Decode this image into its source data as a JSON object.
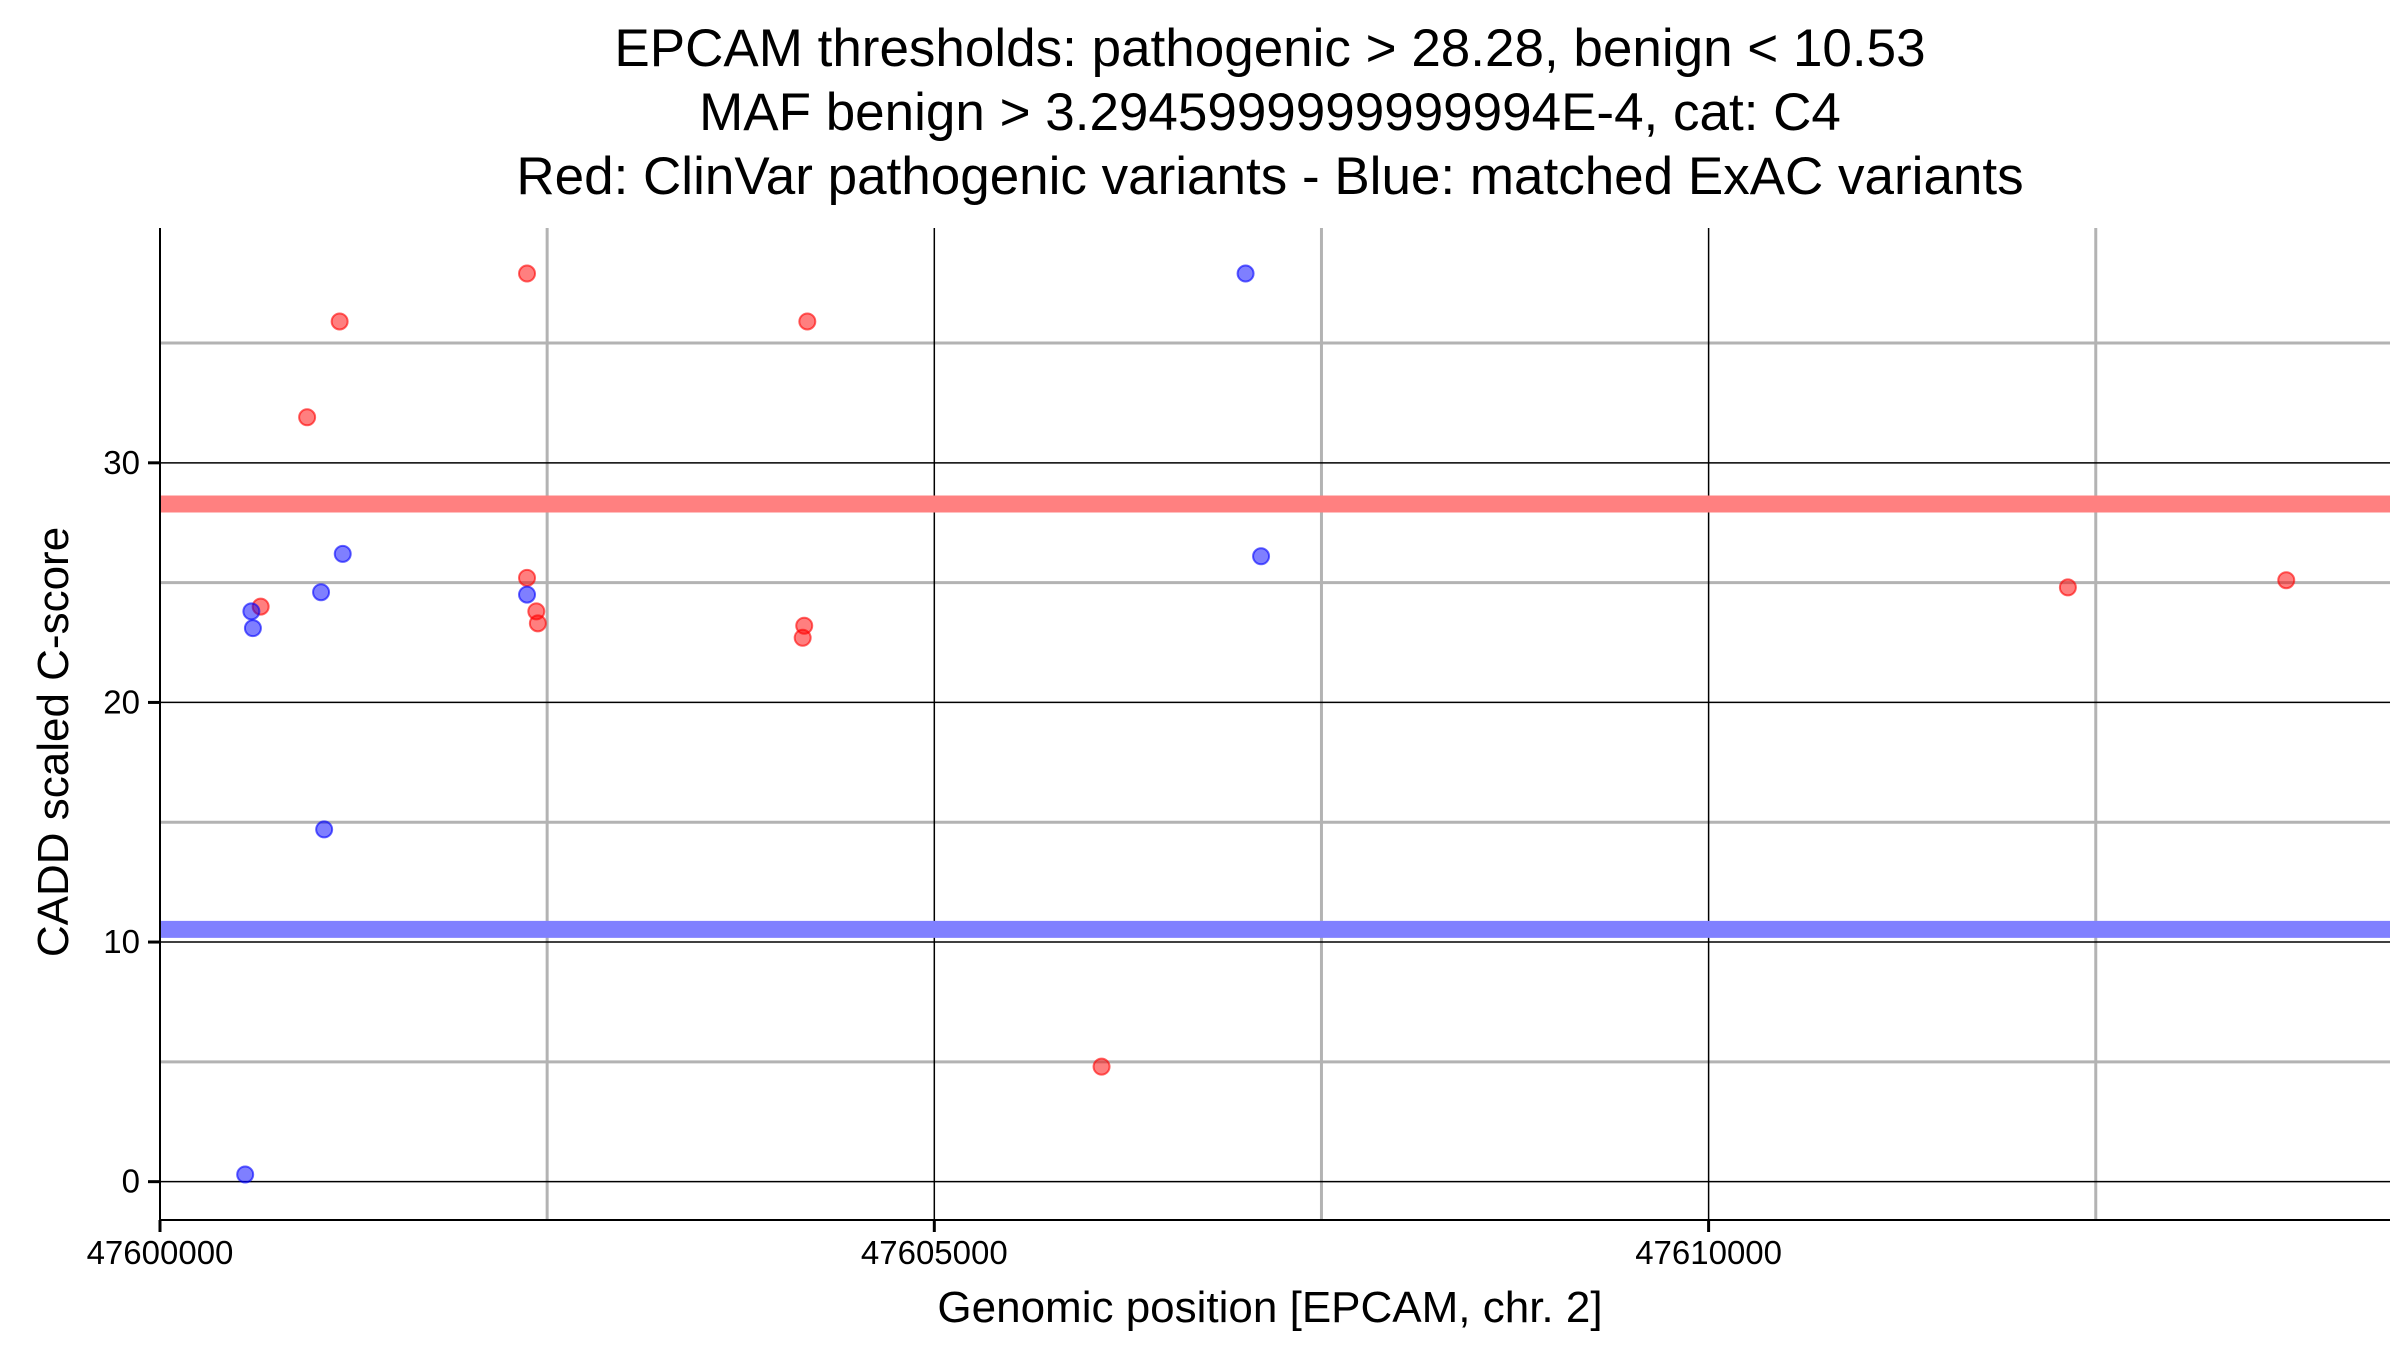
{
  "chart_data": {
    "type": "scatter",
    "title_lines": [
      "EPCAM thresholds: pathogenic > 28.28, benign < 10.53",
      "MAF benign > 3.2945999999999994E-4, cat: C4",
      "Red: ClinVar pathogenic variants - Blue: matched ExAC variants"
    ],
    "xlabel": "Genomic position [EPCAM, chr. 2]",
    "ylabel": "CADD scaled C-score",
    "xlim": [
      47600000,
      47614400
    ],
    "ylim": [
      -1.6,
      39.8
    ],
    "x_ticks": [
      47600000,
      47605000,
      47610000
    ],
    "y_ticks": [
      0,
      10,
      20,
      30
    ],
    "x_tick_labels": [
      "47600000",
      "47605000",
      "47610000"
    ],
    "y_tick_labels": [
      "0",
      "10",
      "20",
      "30"
    ],
    "x_minor_gridlines": [
      47602500,
      47607500,
      47612500
    ],
    "y_minor_gridlines": [
      5,
      15,
      25,
      35
    ],
    "grid": true,
    "thresholds": [
      {
        "value": 28.28,
        "color": "#ff8080"
      },
      {
        "value": 10.53,
        "color": "#8080ff"
      }
    ],
    "series": [
      {
        "color": "#ff0000",
        "points": [
          {
            "x": 47601160,
            "y": 35.9
          },
          {
            "x": 47600950,
            "y": 31.9
          },
          {
            "x": 47602370,
            "y": 37.9
          },
          {
            "x": 47604180,
            "y": 35.9
          },
          {
            "x": 47600650,
            "y": 24.0
          },
          {
            "x": 47602370,
            "y": 25.2
          },
          {
            "x": 47602430,
            "y": 23.8
          },
          {
            "x": 47602440,
            "y": 23.3
          },
          {
            "x": 47604160,
            "y": 23.2
          },
          {
            "x": 47604150,
            "y": 22.7
          },
          {
            "x": 47606080,
            "y": 4.8
          },
          {
            "x": 47612320,
            "y": 24.8
          },
          {
            "x": 47613730,
            "y": 25.1
          }
        ]
      },
      {
        "color": "#0000ff",
        "points": [
          {
            "x": 47607010,
            "y": 37.9
          },
          {
            "x": 47601180,
            "y": 26.2
          },
          {
            "x": 47601040,
            "y": 24.6
          },
          {
            "x": 47600590,
            "y": 23.8
          },
          {
            "x": 47600600,
            "y": 23.1
          },
          {
            "x": 47602370,
            "y": 24.5
          },
          {
            "x": 47607110,
            "y": 26.1
          },
          {
            "x": 47601060,
            "y": 14.7
          },
          {
            "x": 47600550,
            "y": 0.3
          }
        ]
      }
    ]
  }
}
